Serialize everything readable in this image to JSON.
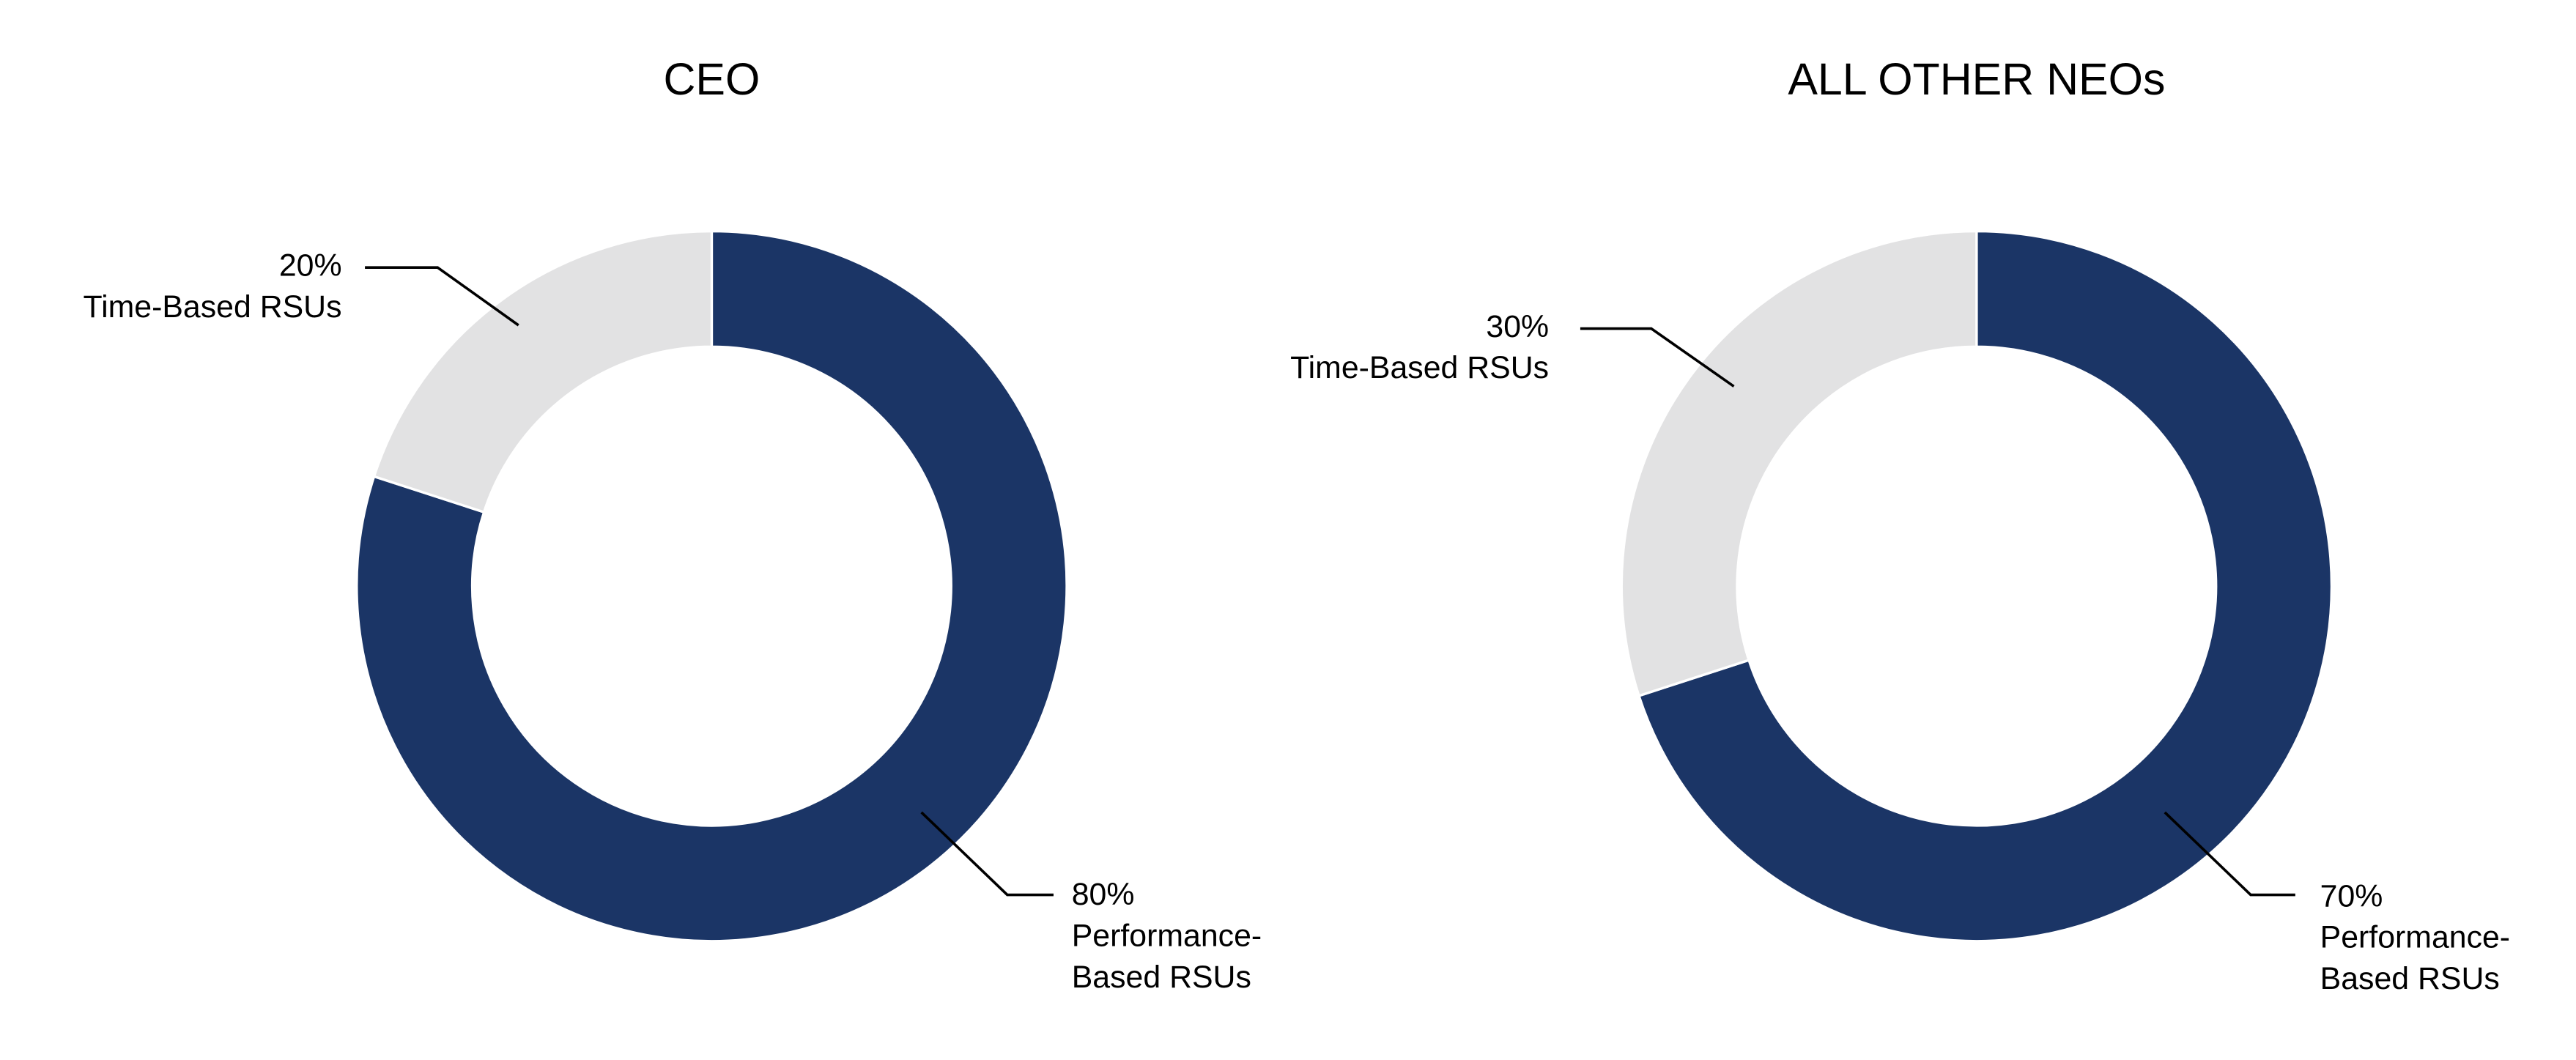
{
  "chart_data": [
    {
      "type": "pie",
      "title": "CEO",
      "categories": [
        "Performance-Based RSUs",
        "Time-Based RSUs"
      ],
      "values": [
        80,
        20
      ],
      "value_labels": [
        "80%",
        "20%"
      ],
      "colors": [
        "#1b3566",
        "#e2e2e3"
      ]
    },
    {
      "type": "pie",
      "title": "ALL OTHER NEOs",
      "categories": [
        "Performance-Based RSUs",
        "Time-Based RSUs"
      ],
      "values": [
        70,
        30
      ],
      "value_labels": [
        "70%",
        "30%"
      ],
      "colors": [
        "#1b3566",
        "#e2e2e3"
      ]
    }
  ]
}
